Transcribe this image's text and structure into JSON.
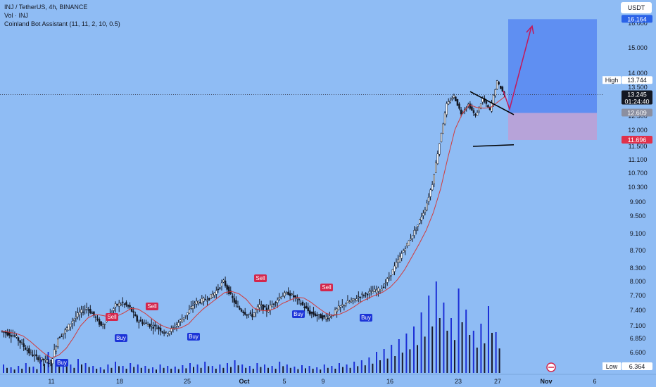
{
  "legend": {
    "line1": "INJ / TetherUS, 4h, BINANCE",
    "line2": "Vol · INJ",
    "line3": "Coinland Bot Assistant (11, 11, 2, 10, 0.5)"
  },
  "currency": "USDT",
  "price_tags": {
    "target": "16.164",
    "high_label": "High",
    "high": "13.744",
    "current": "13.245",
    "countdown": "01:24:40",
    "entry": "12.609",
    "stop": "11.696",
    "low_label": "Low",
    "low": "6.364"
  },
  "colors": {
    "background": "#8fbcf4",
    "bull": "#131722",
    "bear": "#131722",
    "volume": "#1c2fd6",
    "ma": "#d23a3a",
    "sell": "#d3264c",
    "buy": "#1c34d8",
    "target_box": "#5f8ff2",
    "stop_box": "#b7a3d9",
    "arrow": "#c2185b"
  },
  "chart_data": {
    "type": "candlestick",
    "y_ticks": [
      "16.000",
      "15.000",
      "14.000",
      "13.500",
      "12.500",
      "12.000",
      "11.500",
      "11.100",
      "10.700",
      "10.300",
      "9.900",
      "9.500",
      "9.100",
      "8.700",
      "8.300",
      "8.000",
      "7.700",
      "7.400",
      "7.100",
      "6.850",
      "6.600"
    ],
    "x_ticks": [
      "11",
      "18",
      "25",
      "Oct",
      "5",
      "9",
      "16",
      "23",
      "27",
      "Nov",
      "6"
    ],
    "signals": [
      {
        "label": "Sell",
        "date": "Sep 17"
      },
      {
        "label": "Sell",
        "date": "Sep 21"
      },
      {
        "label": "Sell",
        "date": "Oct 2"
      },
      {
        "label": "Sell",
        "date": "Oct 8"
      },
      {
        "label": "Buy",
        "date": "Sep 11"
      },
      {
        "label": "Buy",
        "date": "Sep 18"
      },
      {
        "label": "Buy",
        "date": "Sep 25"
      },
      {
        "label": "Buy",
        "date": "Oct 4"
      },
      {
        "label": "Buy",
        "date": "Oct 12"
      }
    ],
    "position": {
      "entry": 12.609,
      "stop": 11.696,
      "target": 16.164
    },
    "pennant": {
      "upper": [
        13.35,
        12.55
      ],
      "lower": [
        11.5,
        11.55
      ]
    },
    "series": [
      {
        "name": "INJ / TetherUS",
        "path": [
          7.0,
          6.95,
          6.9,
          6.75,
          6.6,
          6.5,
          6.45,
          6.4,
          6.85,
          7.0,
          7.2,
          7.35,
          7.45,
          7.3,
          7.1,
          7.25,
          7.5,
          7.55,
          7.45,
          7.2,
          7.15,
          7.1,
          7.05,
          6.95,
          7.05,
          7.2,
          7.35,
          7.55,
          7.6,
          7.65,
          7.8,
          8.0,
          7.7,
          7.45,
          7.35,
          7.3,
          7.5,
          7.4,
          7.55,
          7.7,
          7.75,
          7.65,
          7.5,
          7.35,
          7.3,
          7.25,
          7.3,
          7.45,
          7.55,
          7.6,
          7.7,
          7.75,
          7.8,
          7.85,
          8.1,
          8.4,
          8.7,
          9.0,
          9.3,
          9.7,
          10.4,
          11.6,
          12.9,
          13.2,
          12.6,
          12.9,
          12.5,
          13.1,
          12.7,
          13.7,
          13.245
        ]
      },
      {
        "name": "Vol · INJ",
        "values": [
          12,
          8,
          10,
          14,
          9,
          22,
          30,
          18,
          16,
          12,
          20,
          14,
          10,
          8,
          12,
          16,
          10,
          14,
          12,
          10,
          8,
          12,
          10,
          9,
          11,
          14,
          12,
          16,
          10,
          12,
          14,
          18,
          12,
          10,
          14,
          12,
          10,
          16,
          12,
          9,
          11,
          10,
          8,
          12,
          10,
          14,
          12,
          16,
          18,
          22,
          30,
          34,
          40,
          48,
          56,
          66,
          86,
          110,
          130,
          100,
          78,
          120,
          90,
          60,
          70,
          95,
          58
        ]
      }
    ]
  }
}
